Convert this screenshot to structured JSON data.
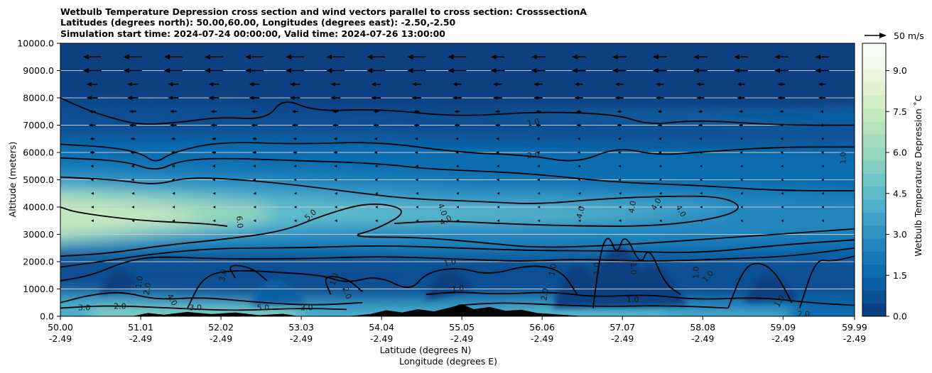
{
  "chart_data": {
    "type": "heatmap",
    "title_lines": [
      "Wetbulb Temperature Depression cross section and wind vectors parallel to cross section: CrosssectionA",
      "Latitudes (degrees north): 50.00,60.00, Longitudes (degrees east): -2.50,-2.50",
      "Simulation start time: 2024-07-24 00:00:00, Valid time: 2024-07-26 13:00:00"
    ],
    "xlabel_lat": "Latitude (degrees N)",
    "xlabel_lon": "Longitude (degrees E)",
    "ylabel": "Altitude (meters)",
    "colorbar_label": "Wetbulb Temperature Depression ˚C",
    "quiver_key_label": "50 m/s",
    "x_ticks": [
      {
        "lat": "50.00",
        "lon": "-2.49"
      },
      {
        "lat": "51.01",
        "lon": "-2.49"
      },
      {
        "lat": "52.02",
        "lon": "-2.49"
      },
      {
        "lat": "53.03",
        "lon": "-2.49"
      },
      {
        "lat": "54.04",
        "lon": "-2.49"
      },
      {
        "lat": "55.05",
        "lon": "-2.49"
      },
      {
        "lat": "56.06",
        "lon": "-2.49"
      },
      {
        "lat": "57.07",
        "lon": "-2.49"
      },
      {
        "lat": "58.08",
        "lon": "-2.49"
      },
      {
        "lat": "59.09",
        "lon": "-2.49"
      },
      {
        "lat": "59.99",
        "lon": "-2.49"
      }
    ],
    "xlim": [
      50.0,
      59.99
    ],
    "y_ticks": [
      "0.0",
      "1000.0",
      "2000.0",
      "3000.0",
      "4000.0",
      "5000.0",
      "6000.0",
      "7000.0",
      "8000.0",
      "9000.0",
      "10000.0"
    ],
    "ylim": [
      0,
      10000
    ],
    "colorbar_ticks": [
      "0.0",
      "1.5",
      "3.0",
      "4.5",
      "6.0",
      "7.5",
      "9.0"
    ],
    "colorbar_range": [
      0,
      10
    ],
    "grid": "horizontal",
    "colors": {
      "level_colors": [
        "#084081",
        "#0a5093",
        "#0b5fa4",
        "#0c6db0",
        "#1679b6",
        "#2386bd",
        "#3094c4",
        "#3fa1ca",
        "#4eafcc",
        "#5fbbca",
        "#70c6c6",
        "#82cfc2",
        "#94d7be",
        "#a5dcbb",
        "#b6e3bc",
        "#c5e8c1",
        "#d3eec8",
        "#dff3d2",
        "#e9f6dc",
        "#f1f9e8",
        "#f7fcf0"
      ],
      "terrain": "#000000",
      "contour": "#000000",
      "arrow": "#000000",
      "grid": "#c8c8c8"
    },
    "contour_labels": [
      {
        "text": "1.0",
        "lat": 55.95,
        "alt": 7080,
        "rot": -10
      },
      {
        "text": "2.0",
        "lat": 55.95,
        "alt": 5880,
        "rot": -5
      },
      {
        "text": "5.0",
        "lat": 53.15,
        "alt": 3700,
        "rot": -40
      },
      {
        "text": "6.0",
        "lat": 52.25,
        "alt": 3450,
        "rot": 85
      },
      {
        "text": "4.0",
        "lat": 54.8,
        "alt": 3900,
        "rot": 70
      },
      {
        "text": "4.0",
        "lat": 54.85,
        "alt": 3500,
        "rot": -30
      },
      {
        "text": "4.0",
        "lat": 56.55,
        "alt": 3800,
        "rot": -75
      },
      {
        "text": "4.0",
        "lat": 57.2,
        "alt": 4000,
        "rot": -80
      },
      {
        "text": "4.0",
        "lat": 57.5,
        "alt": 4100,
        "rot": -60
      },
      {
        "text": "4.0",
        "lat": 57.8,
        "alt": 3850,
        "rot": 60
      },
      {
        "text": "1.0",
        "lat": 59.85,
        "alt": 5800,
        "rot": -90
      },
      {
        "text": "1.0",
        "lat": 54.9,
        "alt": 1950,
        "rot": -10
      },
      {
        "text": "1.0",
        "lat": 55.0,
        "alt": 1000,
        "rot": -5
      },
      {
        "text": "3.0",
        "lat": 50.3,
        "alt": 300,
        "rot": 0
      },
      {
        "text": "3.0",
        "lat": 53.1,
        "alt": 300,
        "rot": 0
      },
      {
        "text": "3.0",
        "lat": 51.7,
        "alt": 300,
        "rot": 0
      },
      {
        "text": "2.0",
        "lat": 50.75,
        "alt": 350,
        "rot": 0
      },
      {
        "text": "1.0",
        "lat": 51.0,
        "alt": 1250,
        "rot": -80
      },
      {
        "text": "2.0",
        "lat": 51.1,
        "alt": 1000,
        "rot": -80
      },
      {
        "text": "1.0",
        "lat": 53.45,
        "alt": 1350,
        "rot": -70
      },
      {
        "text": "2.0",
        "lat": 53.6,
        "alt": 850,
        "rot": 70
      },
      {
        "text": "1.0",
        "lat": 56.2,
        "alt": 1700,
        "rot": -80
      },
      {
        "text": "1.0",
        "lat": 56.75,
        "alt": 1750,
        "rot": -90
      },
      {
        "text": "1.0",
        "lat": 57.2,
        "alt": 1750,
        "rot": 90
      },
      {
        "text": "1.0",
        "lat": 58.0,
        "alt": 1600,
        "rot": -90
      },
      {
        "text": "1.0",
        "lat": 58.15,
        "alt": 1450,
        "rot": -50
      },
      {
        "text": "1.0",
        "lat": 59.05,
        "alt": 550,
        "rot": -60
      },
      {
        "text": "2.0",
        "lat": 59.35,
        "alt": 60,
        "rot": 0
      },
      {
        "text": "1.0",
        "lat": 57.2,
        "alt": 600,
        "rot": 0
      },
      {
        "text": "3.0",
        "lat": 52.05,
        "alt": 1500,
        "rot": -80
      },
      {
        "text": "4.0",
        "lat": 51.4,
        "alt": 600,
        "rot": 60
      },
      {
        "text": "5.0",
        "lat": 52.55,
        "alt": 300,
        "rot": 0
      },
      {
        "text": "2.0",
        "lat": 56.1,
        "alt": 800,
        "rot": -80
      }
    ]
  }
}
